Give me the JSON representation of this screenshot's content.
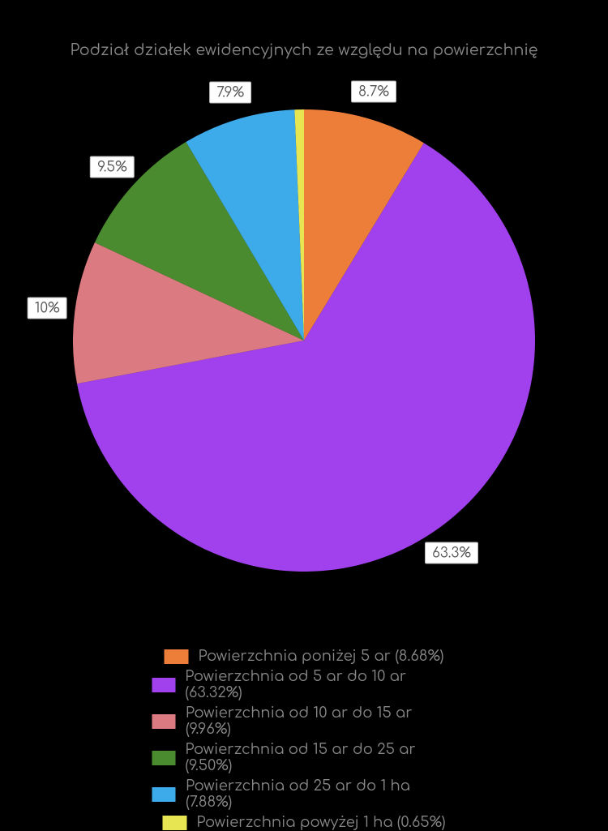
{
  "chart": {
    "type": "pie",
    "title": "Podział działek ewidencyjnych ze względu na powierzchnię",
    "title_fontsize": 19,
    "title_color": "#888888",
    "background_color": "#000000",
    "slices": [
      {
        "label": "Powierzchnia poniżej 5 ar",
        "pct": 8.68,
        "short": "8.7%",
        "leg_pct": "8.68%",
        "color": "#ec7e3a"
      },
      {
        "label": "Powierzchnia od 5 ar do 10 ar",
        "pct": 63.32,
        "short": "63.3%",
        "leg_pct": "63.32%",
        "color": "#a041ed"
      },
      {
        "label": "Powierzchnia od 10 ar do 15 ar",
        "pct": 9.96,
        "short": "10%",
        "leg_pct": "9.96%",
        "color": "#db7b81"
      },
      {
        "label": "Powierzchnia od 15 ar do 25 ar",
        "pct": 9.5,
        "short": "9.5%",
        "leg_pct": "9.50%",
        "color": "#4b8b2f"
      },
      {
        "label": "Powierzchnia od 25 ar do 1 ha",
        "pct": 7.88,
        "short": "7.9%",
        "leg_pct": "7.88%",
        "color": "#3daaea"
      },
      {
        "label": "Powierzchnia powyżej 1 ha",
        "pct": 0.65,
        "short": "",
        "leg_pct": "0.65%",
        "color": "#e7e552"
      }
    ],
    "label_box": {
      "bg": "#ffffff",
      "border": "#b8b8b8",
      "text": "#555555",
      "fontsize": 17
    },
    "legend": {
      "fontsize": 18,
      "text_color": "#888888",
      "swatch_w": 30,
      "swatch_h": 18
    },
    "pie_radius": 285,
    "start_angle_deg": -90,
    "label_offset": 1.12
  }
}
